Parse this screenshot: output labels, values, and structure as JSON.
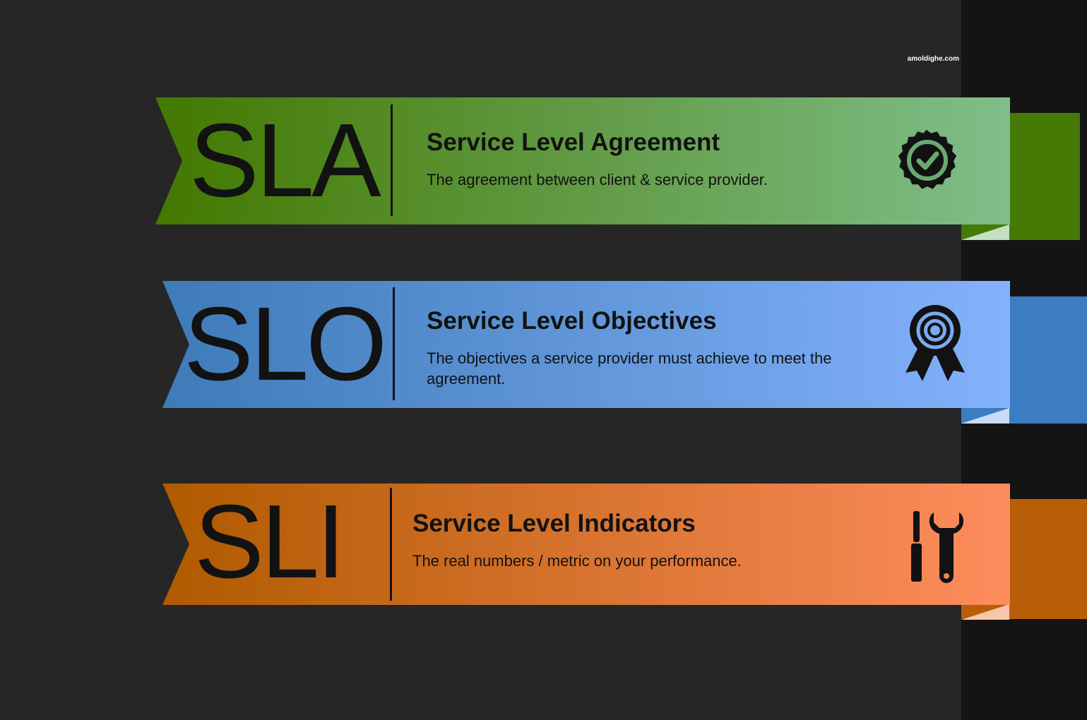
{
  "watermark": "amoldighe.com",
  "banners": [
    {
      "abbr": "SLA",
      "title": "Service Level Agreement",
      "description": "The agreement between client & service provider.",
      "icon": "badge-check-icon",
      "colors": {
        "start": "#437800",
        "end": "#80be8a",
        "tail": "#467a06",
        "fold": "#c4dfc4"
      }
    },
    {
      "abbr": "SLO",
      "title": "Service Level Objectives",
      "description": "The objectives a service provider must achieve to meet the agreement.",
      "icon": "award-ribbon-icon",
      "colors": {
        "start": "#3e7bb8",
        "end": "#84b2fc",
        "tail": "#3c7cc0",
        "fold": "#c8dcf8"
      }
    },
    {
      "abbr": "SLI",
      "title": "Service Level Indicators",
      "description": "The real numbers / metric on your performance.",
      "icon": "tools-icon",
      "colors": {
        "start": "#b05a00",
        "end": "#ff8c5e",
        "tail": "#b85e08",
        "fold": "#f6c8a8"
      }
    }
  ]
}
